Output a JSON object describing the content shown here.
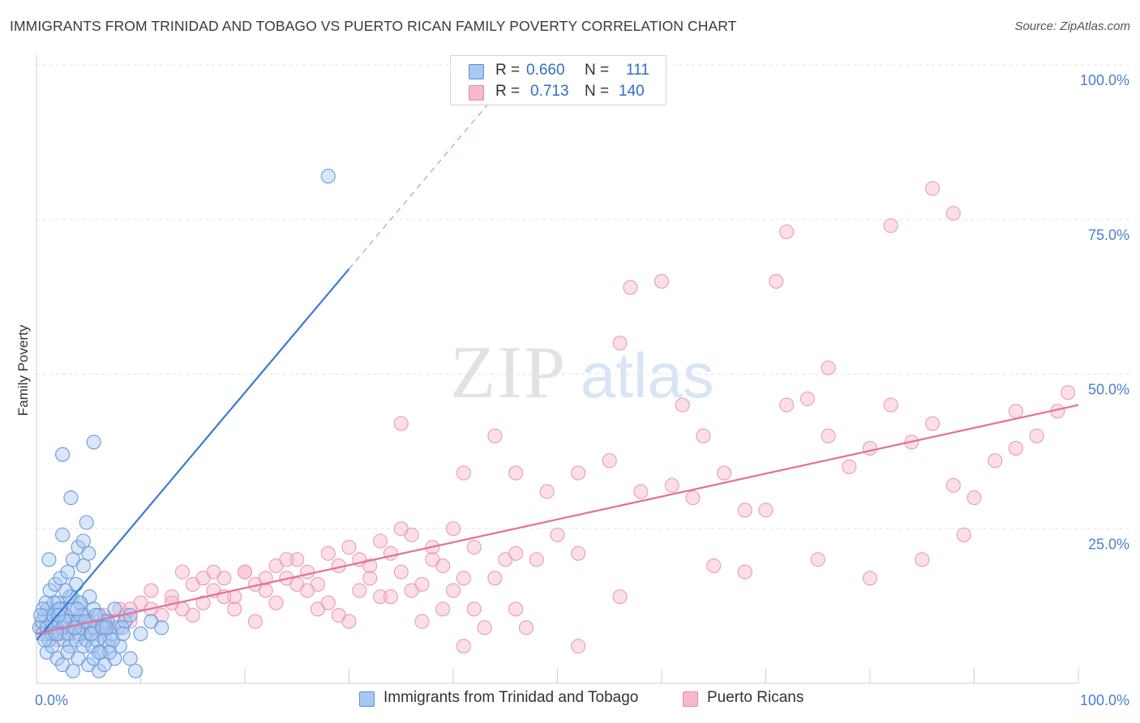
{
  "header": {
    "title": "IMMIGRANTS FROM TRINIDAD AND TOBAGO VS PUERTO RICAN FAMILY POVERTY CORRELATION CHART",
    "source": "Source: ZipAtlas.com"
  },
  "watermark": {
    "zip": "ZIP",
    "atlas": "atlas"
  },
  "legend": {
    "r_label": "R =",
    "n_label": "N =",
    "series": [
      {
        "name": "Immigrants from Trinidad and Tobago",
        "r": "0.660",
        "n": "111",
        "fill": "#a8c8ef",
        "stroke": "#5b8fd6"
      },
      {
        "name": "Puerto Ricans",
        "r": "0.713",
        "n": "140",
        "fill": "#f6b8cb",
        "stroke": "#e88aa8"
      }
    ]
  },
  "chart_data": {
    "type": "scatter",
    "ylabel": "Family Poverty",
    "x_ticks": [
      "0.0%",
      "100.0%"
    ],
    "y_ticks": [
      "25.0%",
      "50.0%",
      "75.0%",
      "100.0%"
    ],
    "xlim": [
      0,
      100
    ],
    "ylim": [
      0,
      100
    ],
    "grid": true,
    "colors": {
      "blue": "#3a7bd5",
      "pink": "#e56f9a",
      "tick": "#4b7fcf"
    },
    "series": [
      {
        "name": "Immigrants from Trinidad and Tobago",
        "trend": {
          "x0": 0,
          "y0": 7,
          "x1": 30,
          "y1": 67,
          "dash_x1": 44,
          "dash_y1": 95
        },
        "points": [
          [
            0.3,
            9
          ],
          [
            0.5,
            10
          ],
          [
            0.6,
            8
          ],
          [
            0.8,
            11
          ],
          [
            1,
            9
          ],
          [
            1.1,
            12
          ],
          [
            1.2,
            7
          ],
          [
            1.4,
            10
          ],
          [
            1.5,
            8
          ],
          [
            1.6,
            11
          ],
          [
            1.8,
            9
          ],
          [
            2,
            13
          ],
          [
            2.1,
            10
          ],
          [
            2.2,
            8
          ],
          [
            2.4,
            12
          ],
          [
            2.5,
            9
          ],
          [
            2.6,
            7
          ],
          [
            2.8,
            11
          ],
          [
            3,
            10
          ],
          [
            3.1,
            8
          ],
          [
            3.2,
            6
          ],
          [
            3.4,
            14
          ],
          [
            3.5,
            9
          ],
          [
            3.6,
            12
          ],
          [
            3.8,
            7
          ],
          [
            4,
            10
          ],
          [
            4.1,
            8
          ],
          [
            4.2,
            13
          ],
          [
            4.4,
            9
          ],
          [
            4.5,
            6
          ],
          [
            4.6,
            11
          ],
          [
            4.8,
            7
          ],
          [
            5,
            10
          ],
          [
            5.1,
            14
          ],
          [
            5.2,
            8
          ],
          [
            5.4,
            6
          ],
          [
            5.5,
            12
          ],
          [
            5.6,
            9
          ],
          [
            5.8,
            7
          ],
          [
            6,
            11
          ],
          [
            6.2,
            5
          ],
          [
            6.4,
            9
          ],
          [
            6.6,
            7
          ],
          [
            6.8,
            10
          ],
          [
            7,
            6
          ],
          [
            7.2,
            8
          ],
          [
            7.5,
            4
          ],
          [
            7.8,
            9
          ],
          [
            8,
            6
          ],
          [
            8.5,
            10
          ],
          [
            1,
            5
          ],
          [
            1.5,
            6
          ],
          [
            2,
            4
          ],
          [
            2.5,
            3
          ],
          [
            3,
            5
          ],
          [
            3.5,
            2
          ],
          [
            4,
            4
          ],
          [
            5,
            3
          ],
          [
            6,
            2
          ],
          [
            7,
            5
          ],
          [
            9,
            4
          ],
          [
            9.5,
            2
          ],
          [
            1.3,
            15
          ],
          [
            1.8,
            16
          ],
          [
            2.3,
            17
          ],
          [
            3,
            18
          ],
          [
            3.5,
            20
          ],
          [
            4,
            22
          ],
          [
            4.5,
            19
          ],
          [
            5,
            21
          ],
          [
            1.2,
            20
          ],
          [
            2.5,
            24
          ],
          [
            3.2,
            14
          ],
          [
            3.8,
            16
          ],
          [
            4.2,
            13
          ],
          [
            1.7,
            13
          ],
          [
            2.2,
            12
          ],
          [
            2.8,
            15
          ],
          [
            0.9,
            13
          ],
          [
            0.6,
            12
          ],
          [
            3.3,
            30
          ],
          [
            4.8,
            26
          ],
          [
            4.5,
            23
          ],
          [
            6.5,
            10
          ],
          [
            7.5,
            12
          ],
          [
            8.2,
            9
          ],
          [
            9,
            11
          ],
          [
            10,
            8
          ],
          [
            11,
            10
          ],
          [
            12,
            9
          ],
          [
            5.5,
            4
          ],
          [
            6,
            5
          ],
          [
            6.5,
            3
          ],
          [
            2.5,
            37
          ],
          [
            5.5,
            39
          ],
          [
            28,
            82
          ],
          [
            0.8,
            7
          ],
          [
            1.9,
            8
          ],
          [
            2.7,
            10
          ],
          [
            3.7,
            9
          ],
          [
            4.3,
            11
          ],
          [
            5.3,
            8
          ],
          [
            6.3,
            9
          ],
          [
            7.3,
            7
          ],
          [
            8.3,
            8
          ],
          [
            2.1,
            11
          ],
          [
            3.9,
            12
          ],
          [
            4.7,
            10
          ],
          [
            5.7,
            11
          ],
          [
            6.7,
            9
          ],
          [
            0.4,
            11
          ]
        ]
      },
      {
        "name": "Puerto Ricans",
        "trend": {
          "x0": 0,
          "y0": 8,
          "x1": 100,
          "y1": 45
        },
        "points": [
          [
            0.5,
            9
          ],
          [
            1,
            8
          ],
          [
            1.5,
            10
          ],
          [
            2,
            7
          ],
          [
            2.5,
            9
          ],
          [
            3,
            8
          ],
          [
            3.5,
            10
          ],
          [
            4,
            9
          ],
          [
            4.5,
            8
          ],
          [
            5,
            10
          ],
          [
            5.5,
            9
          ],
          [
            6,
            8
          ],
          [
            6.5,
            11
          ],
          [
            7,
            9
          ],
          [
            7.5,
            10
          ],
          [
            8,
            12
          ],
          [
            8.5,
            11
          ],
          [
            9,
            10
          ],
          [
            10,
            13
          ],
          [
            11,
            12
          ],
          [
            12,
            11
          ],
          [
            13,
            14
          ],
          [
            14,
            12
          ],
          [
            15,
            16
          ],
          [
            16,
            13
          ],
          [
            17,
            15
          ],
          [
            18,
            17
          ],
          [
            19,
            14
          ],
          [
            20,
            18
          ],
          [
            21,
            16
          ],
          [
            22,
            15
          ],
          [
            23,
            19
          ],
          [
            24,
            17
          ],
          [
            25,
            20
          ],
          [
            26,
            18
          ],
          [
            27,
            16
          ],
          [
            28,
            21
          ],
          [
            29,
            19
          ],
          [
            30,
            22
          ],
          [
            31,
            20
          ],
          [
            32,
            17
          ],
          [
            33,
            23
          ],
          [
            34,
            21
          ],
          [
            35,
            18
          ],
          [
            36,
            24
          ],
          [
            37,
            16
          ],
          [
            38,
            22
          ],
          [
            39,
            19
          ],
          [
            40,
            25
          ],
          [
            41,
            17
          ],
          [
            9,
            12
          ],
          [
            11,
            15
          ],
          [
            13,
            13
          ],
          [
            15,
            11
          ],
          [
            17,
            18
          ],
          [
            19,
            12
          ],
          [
            21,
            10
          ],
          [
            23,
            13
          ],
          [
            25,
            16
          ],
          [
            27,
            12
          ],
          [
            29,
            11
          ],
          [
            31,
            15
          ],
          [
            33,
            14
          ],
          [
            35,
            25
          ],
          [
            37,
            10
          ],
          [
            39,
            12
          ],
          [
            41,
            6
          ],
          [
            43,
            9
          ],
          [
            45,
            20
          ],
          [
            47,
            9
          ],
          [
            14,
            18
          ],
          [
            16,
            17
          ],
          [
            18,
            14
          ],
          [
            20,
            18
          ],
          [
            22,
            17
          ],
          [
            24,
            20
          ],
          [
            26,
            15
          ],
          [
            28,
            13
          ],
          [
            30,
            10
          ],
          [
            32,
            19
          ],
          [
            34,
            14
          ],
          [
            36,
            15
          ],
          [
            38,
            20
          ],
          [
            40,
            15
          ],
          [
            42,
            12
          ],
          [
            44,
            17
          ],
          [
            46,
            12
          ],
          [
            48,
            20
          ],
          [
            50,
            24
          ],
          [
            52,
            6
          ],
          [
            35,
            42
          ],
          [
            41,
            34
          ],
          [
            44,
            40
          ],
          [
            46,
            34
          ],
          [
            49,
            31
          ],
          [
            52,
            34
          ],
          [
            55,
            36
          ],
          [
            61,
            32
          ],
          [
            63,
            30
          ],
          [
            58,
            31
          ],
          [
            62,
            45
          ],
          [
            64,
            40
          ],
          [
            66,
            34
          ],
          [
            68,
            28
          ],
          [
            70,
            28
          ],
          [
            72,
            45
          ],
          [
            74,
            46
          ],
          [
            76,
            40
          ],
          [
            78,
            35
          ],
          [
            80,
            38
          ],
          [
            82,
            45
          ],
          [
            84,
            39
          ],
          [
            86,
            42
          ],
          [
            88,
            32
          ],
          [
            90,
            30
          ],
          [
            92,
            36
          ],
          [
            94,
            38
          ],
          [
            96,
            40
          ],
          [
            98,
            44
          ],
          [
            99,
            47
          ],
          [
            56,
            55
          ],
          [
            60,
            65
          ],
          [
            71,
            65
          ],
          [
            72,
            73
          ],
          [
            76,
            51
          ],
          [
            86,
            80
          ],
          [
            88,
            76
          ],
          [
            82,
            74
          ],
          [
            57,
            64
          ],
          [
            94,
            44
          ],
          [
            42,
            22
          ],
          [
            46,
            21
          ],
          [
            52,
            21
          ],
          [
            56,
            14
          ],
          [
            65,
            19
          ],
          [
            68,
            18
          ],
          [
            75,
            20
          ],
          [
            80,
            17
          ],
          [
            85,
            20
          ],
          [
            89,
            24
          ]
        ]
      }
    ]
  }
}
